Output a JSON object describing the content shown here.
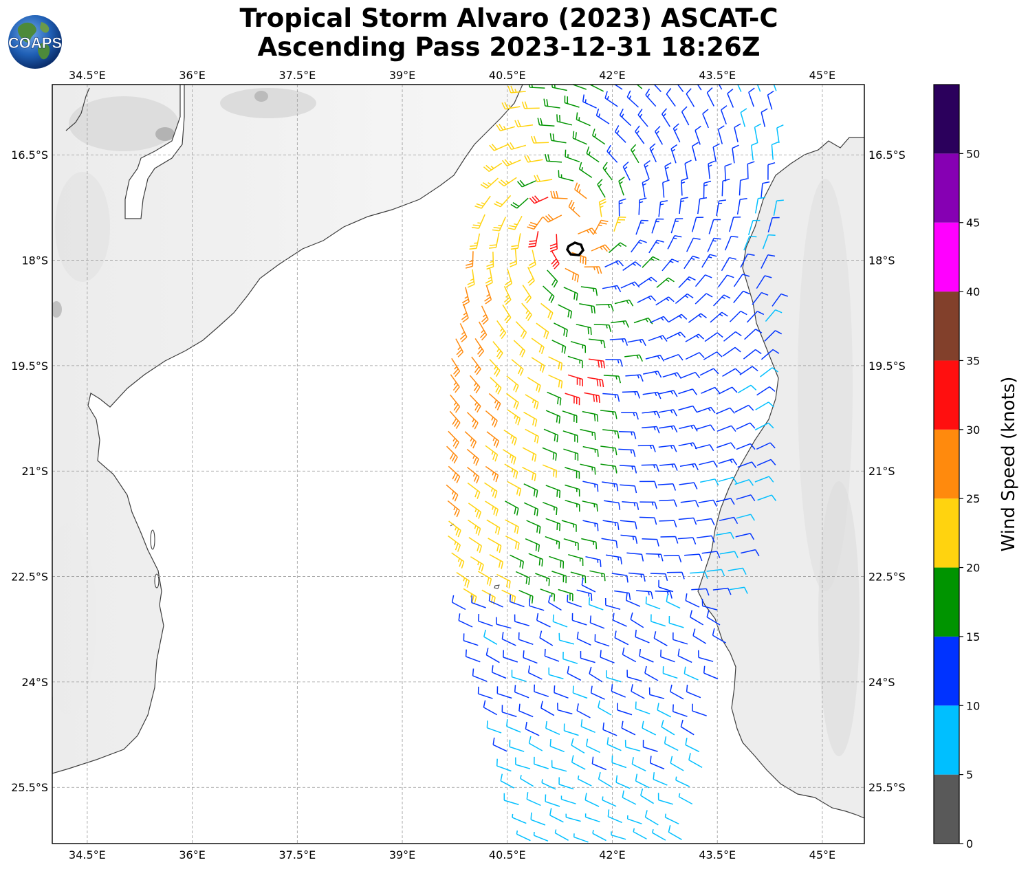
{
  "title": {
    "line1": "Tropical Storm Alvaro (2023) ASCAT-C",
    "line2": "Ascending Pass 2023-12-31 18:26Z"
  },
  "logo": {
    "text": "COAPS",
    "icon": "globe-icon"
  },
  "map": {
    "lon_range": [
      34.0,
      45.6
    ],
    "lat_range": [
      -26.3,
      -15.5
    ],
    "lon_ticks": [
      "34.5°E",
      "36°E",
      "37.5°E",
      "39°E",
      "40.5°E",
      "42°E",
      "43.5°E",
      "45°E"
    ],
    "lon_tick_values": [
      34.5,
      36,
      37.5,
      39,
      40.5,
      42,
      43.5,
      45
    ],
    "lat_ticks": [
      "16.5°S",
      "18°S",
      "19.5°S",
      "21°S",
      "22.5°S",
      "24°S",
      "25.5°S"
    ],
    "lat_tick_values": [
      -16.5,
      -18,
      -19.5,
      -21,
      -22.5,
      -24,
      -25.5
    ],
    "gridlines": true,
    "storm_center": {
      "lon": 41.45,
      "lat": -17.55
    }
  },
  "colorbar": {
    "label": "Wind Speed (knots)",
    "ticks": [
      "0",
      "5",
      "10",
      "15",
      "20",
      "25",
      "30",
      "35",
      "40",
      "45",
      "50"
    ],
    "bins": [
      {
        "from": 0,
        "to": 5,
        "color": "#595959"
      },
      {
        "from": 5,
        "to": 10,
        "color": "#00bfff"
      },
      {
        "from": 10,
        "to": 15,
        "color": "#0033ff"
      },
      {
        "from": 15,
        "to": 20,
        "color": "#009400"
      },
      {
        "from": 20,
        "to": 25,
        "color": "#ffd30f"
      },
      {
        "from": 25,
        "to": 30,
        "color": "#ff8a0d"
      },
      {
        "from": 30,
        "to": 35,
        "color": "#ff0f0f"
      },
      {
        "from": 35,
        "to": 40,
        "color": "#82402b"
      },
      {
        "from": 40,
        "to": 45,
        "color": "#ff00ff"
      },
      {
        "from": 45,
        "to": 50,
        "color": "#8600b3"
      },
      {
        "from": 50,
        "to": 55,
        "color": "#2b005c"
      }
    ]
  }
}
